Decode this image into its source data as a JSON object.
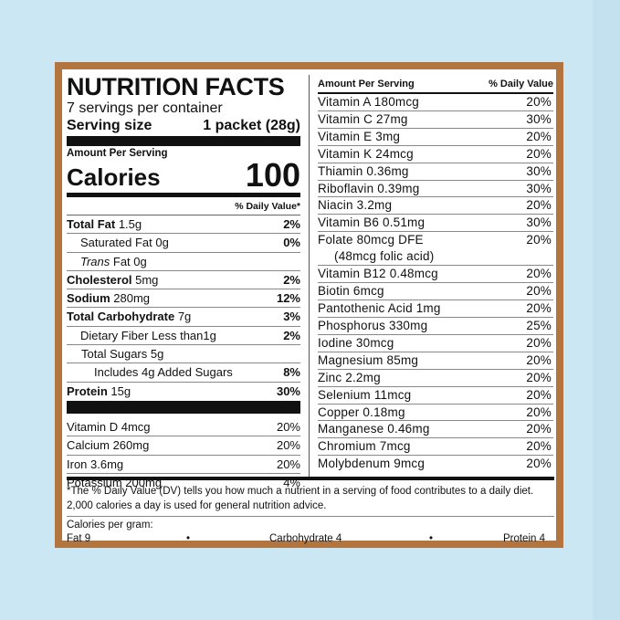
{
  "panel": {
    "title": "NUTRITION FACTS",
    "servings_per_container": "7 servings per container",
    "serving_size_label": "Serving size",
    "serving_size_value": "1 packet (28g)",
    "amount_per_serving": "Amount Per Serving",
    "calories_label": "Calories",
    "calories_value": "100",
    "daily_value_header": "% Daily Value*"
  },
  "nutrients": [
    {
      "name": "Total Fat",
      "amount": " 1.5g",
      "dv": "2%"
    },
    {
      "name": "Saturated Fat 0g",
      "amount": "",
      "dv": "0%"
    },
    {
      "name": "Trans",
      "amount": " Fat 0g",
      "dv": ""
    },
    {
      "name": "Cholesterol",
      "amount": " 5mg",
      "dv": "2%"
    },
    {
      "name": "Sodium",
      "amount": " 280mg",
      "dv": "12%"
    },
    {
      "name": "Total Carbohydrate",
      "amount": " 7g",
      "dv": "3%"
    },
    {
      "name": "Dietary Fiber Less than1g",
      "amount": "",
      "dv": "2%"
    },
    {
      "name": "Total Sugars 5g",
      "amount": "",
      "dv": ""
    },
    {
      "name": "Includes 4g Added Sugars",
      "amount": "",
      "dv": "8%"
    },
    {
      "name": "Protein",
      "amount": " 15g",
      "dv": "30%"
    }
  ],
  "left_vitamins": [
    {
      "name": "Vitamin D 4mcg",
      "dv": "20%"
    },
    {
      "name": "Calcium 260mg",
      "dv": "20%"
    },
    {
      "name": "Iron 3.6mg",
      "dv": "20%"
    },
    {
      "name": "Potassium 200mg",
      "dv": "4%"
    }
  ],
  "right_header": {
    "left": "Amount Per Serving",
    "right": "% Daily Value"
  },
  "right_vitamins": [
    {
      "name": "Vitamin A  180mcg",
      "dv": "20%"
    },
    {
      "name": "Vitamin C  27mg",
      "dv": "30%"
    },
    {
      "name": "Vitamin E  3mg",
      "dv": "20%"
    },
    {
      "name": "Vitamin K  24mcg",
      "dv": "20%"
    },
    {
      "name": "Thiamin  0.36mg",
      "dv": "30%"
    },
    {
      "name": "Riboflavin  0.39mg",
      "dv": "30%"
    },
    {
      "name": "Niacin  3.2mg",
      "dv": "20%"
    },
    {
      "name": "Vitamin B6  0.51mg",
      "dv": "30%"
    }
  ],
  "folate": {
    "line1": "Folate  80mcg DFE",
    "line2": "(48mcg folic acid)",
    "dv": "20%"
  },
  "right_vitamins_2": [
    {
      "name": "Vitamin B12  0.48mcg",
      "dv": "20%"
    },
    {
      "name": "Biotin  6mcg",
      "dv": "20%"
    },
    {
      "name": "Pantothenic Acid  1mg",
      "dv": "20%"
    },
    {
      "name": "Phosphorus  330mg",
      "dv": "25%"
    },
    {
      "name": "Iodine  30mcg",
      "dv": "20%"
    },
    {
      "name": "Magnesium  85mg",
      "dv": "20%"
    },
    {
      "name": "Zinc  2.2mg",
      "dv": "20%"
    },
    {
      "name": "Selenium  11mcg",
      "dv": "20%"
    },
    {
      "name": "Copper  0.18mg",
      "dv": "20%"
    },
    {
      "name": "Manganese  0.46mg",
      "dv": "20%"
    },
    {
      "name": "Chromium  7mcg",
      "dv": "20%"
    },
    {
      "name": "Molybdenum  9mcg",
      "dv": "20%"
    }
  ],
  "footnote": "*The % Daily Value (DV) tells you how much a nutrient in a serving of food contributes to a daily diet. 2,000 calories a day is used for general nutrition advice.",
  "calories_per_gram": {
    "label": "Calories per gram:",
    "fat": "Fat 9",
    "sep1": "•",
    "carb": "Carbohydrate 4",
    "sep2": "•",
    "protein": "Protein 4"
  },
  "colors": {
    "background": "#cbe7f3",
    "frame": "#b2753f",
    "label": "#ffffff",
    "ink": "#111111"
  }
}
